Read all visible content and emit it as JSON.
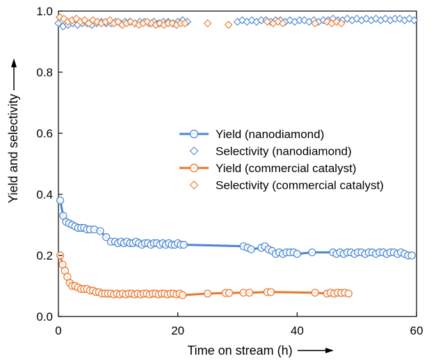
{
  "chart_data": {
    "type": "line",
    "xlabel": "Time on stream (h)",
    "ylabel": "Yield and selectivity",
    "xlim": [
      0,
      60
    ],
    "ylim": [
      0.0,
      1.0
    ],
    "xticks": [
      0,
      20,
      40,
      60
    ],
    "yticks": [
      0.0,
      0.2,
      0.4,
      0.6,
      0.8,
      1.0
    ],
    "xtick_labels": [
      "0",
      "20",
      "40",
      "60"
    ],
    "ytick_labels": [
      "0.0",
      "0.2",
      "0.4",
      "0.6",
      "0.8",
      "1.0"
    ],
    "grid": false,
    "legend_position": "center-right",
    "series": [
      {
        "name": "Yield (nanodiamond)",
        "marker": "circle",
        "line": true,
        "color": "#4a86d0",
        "x": [
          0.3,
          0.8,
          1.3,
          1.8,
          2.3,
          2.8,
          3.3,
          3.8,
          4.3,
          4.8,
          5.3,
          6.0,
          7.0,
          8.0,
          8.8,
          9.5,
          10.0,
          10.5,
          11.0,
          11.5,
          12.0,
          12.5,
          13.0,
          13.5,
          14.0,
          14.5,
          15.0,
          15.5,
          16.0,
          16.5,
          17.0,
          17.5,
          18.0,
          18.5,
          19.0,
          19.5,
          20.0,
          20.5,
          21.0,
          31.0,
          31.7,
          32.3,
          34.0,
          34.6,
          35.2,
          35.8,
          36.4,
          37.0,
          37.6,
          38.2,
          38.8,
          39.4,
          40.0,
          42.5,
          46.0,
          46.6,
          47.2,
          47.8,
          48.4,
          49.0,
          49.6,
          50.2,
          50.8,
          51.4,
          52.0,
          52.6,
          53.2,
          53.8,
          54.4,
          55.0,
          55.6,
          56.2,
          56.8,
          57.4,
          58.0,
          58.6,
          59.2
        ],
        "y": [
          0.38,
          0.33,
          0.31,
          0.305,
          0.3,
          0.295,
          0.29,
          0.29,
          0.29,
          0.285,
          0.285,
          0.285,
          0.28,
          0.26,
          0.245,
          0.245,
          0.24,
          0.245,
          0.24,
          0.245,
          0.24,
          0.24,
          0.245,
          0.24,
          0.235,
          0.24,
          0.24,
          0.235,
          0.24,
          0.24,
          0.235,
          0.24,
          0.235,
          0.24,
          0.235,
          0.235,
          0.24,
          0.235,
          0.235,
          0.23,
          0.225,
          0.22,
          0.225,
          0.23,
          0.22,
          0.215,
          0.205,
          0.21,
          0.205,
          0.21,
          0.21,
          0.21,
          0.205,
          0.21,
          0.21,
          0.205,
          0.21,
          0.205,
          0.21,
          0.21,
          0.205,
          0.21,
          0.21,
          0.205,
          0.21,
          0.21,
          0.205,
          0.21,
          0.21,
          0.205,
          0.21,
          0.21,
          0.205,
          0.21,
          0.205,
          0.2,
          0.2
        ]
      },
      {
        "name": "Selectivity (nanodiamond)",
        "marker": "diamond",
        "line": false,
        "color": "#4a86d0",
        "x": [
          0.0,
          0.8,
          1.6,
          2.4,
          3.2,
          4.0,
          4.8,
          5.6,
          6.4,
          7.2,
          8.0,
          8.8,
          9.6,
          10.4,
          11.2,
          12.0,
          12.8,
          13.6,
          14.4,
          15.2,
          16.0,
          16.8,
          17.6,
          18.4,
          19.2,
          20.0,
          20.8,
          21.6,
          30.0,
          30.8,
          31.6,
          32.4,
          33.2,
          34.0,
          34.8,
          35.6,
          36.4,
          37.2,
          38.0,
          38.8,
          39.6,
          40.4,
          41.2,
          42.0,
          42.8,
          43.6,
          44.4,
          45.2,
          46.0,
          46.8,
          47.6,
          48.4,
          49.2,
          50.0,
          50.8,
          51.6,
          52.4,
          53.2,
          54.0,
          54.8,
          55.6,
          56.4,
          57.2,
          58.0,
          58.8,
          59.6
        ],
        "y": [
          0.96,
          0.95,
          0.955,
          0.96,
          0.955,
          0.96,
          0.96,
          0.955,
          0.96,
          0.965,
          0.96,
          0.96,
          0.965,
          0.96,
          0.965,
          0.965,
          0.96,
          0.965,
          0.965,
          0.96,
          0.965,
          0.96,
          0.965,
          0.965,
          0.96,
          0.965,
          0.97,
          0.965,
          0.965,
          0.97,
          0.965,
          0.97,
          0.965,
          0.97,
          0.97,
          0.965,
          0.97,
          0.97,
          0.965,
          0.97,
          0.965,
          0.97,
          0.97,
          0.965,
          0.97,
          0.965,
          0.97,
          0.97,
          0.975,
          0.97,
          0.97,
          0.975,
          0.97,
          0.975,
          0.97,
          0.975,
          0.97,
          0.975,
          0.97,
          0.975,
          0.97,
          0.975,
          0.975,
          0.97,
          0.975,
          0.97
        ]
      },
      {
        "name": "Yield (commercial catalyst)",
        "marker": "circle",
        "line": true,
        "color": "#e8762c",
        "x": [
          0.3,
          0.7,
          1.1,
          1.5,
          1.9,
          2.3,
          2.8,
          3.3,
          3.8,
          4.3,
          4.8,
          5.3,
          5.8,
          6.3,
          6.8,
          7.3,
          7.8,
          8.3,
          8.8,
          9.3,
          9.8,
          10.3,
          10.8,
          11.3,
          11.8,
          12.3,
          12.8,
          13.3,
          13.8,
          14.3,
          14.8,
          15.3,
          15.8,
          16.3,
          16.8,
          17.3,
          17.8,
          18.3,
          18.8,
          19.3,
          19.8,
          20.3,
          20.8,
          25.0,
          28.0,
          28.6,
          31.0,
          32.0,
          35.0,
          35.6,
          43.0,
          45.0,
          45.6,
          46.2,
          46.8,
          47.4,
          48.0,
          48.6
        ],
        "y": [
          0.2,
          0.17,
          0.15,
          0.13,
          0.11,
          0.1,
          0.1,
          0.095,
          0.09,
          0.09,
          0.09,
          0.085,
          0.085,
          0.08,
          0.08,
          0.075,
          0.075,
          0.075,
          0.075,
          0.072,
          0.075,
          0.072,
          0.075,
          0.072,
          0.075,
          0.075,
          0.072,
          0.075,
          0.072,
          0.075,
          0.075,
          0.072,
          0.075,
          0.075,
          0.072,
          0.075,
          0.075,
          0.072,
          0.075,
          0.075,
          0.072,
          0.075,
          0.07,
          0.075,
          0.077,
          0.077,
          0.078,
          0.078,
          0.08,
          0.08,
          0.078,
          0.075,
          0.078,
          0.075,
          0.078,
          0.077,
          0.078,
          0.075
        ]
      },
      {
        "name": "Selectivity (commercial catalyst)",
        "marker": "diamond",
        "line": false,
        "color": "#e8762c",
        "x": [
          0.2,
          0.9,
          1.6,
          2.3,
          3.0,
          3.7,
          4.4,
          5.1,
          5.8,
          6.5,
          7.2,
          7.9,
          8.6,
          9.3,
          10.0,
          10.7,
          11.4,
          12.1,
          12.8,
          13.5,
          14.2,
          14.9,
          15.6,
          16.3,
          17.0,
          17.7,
          18.4,
          19.1,
          19.8,
          20.5,
          21.2,
          25.0,
          28.5,
          35.0,
          36.0,
          36.8,
          37.6,
          43.0,
          45.0,
          45.8,
          46.6,
          47.4
        ],
        "y": [
          0.98,
          0.975,
          0.965,
          0.97,
          0.975,
          0.965,
          0.97,
          0.96,
          0.97,
          0.965,
          0.96,
          0.965,
          0.97,
          0.96,
          0.965,
          0.955,
          0.96,
          0.965,
          0.96,
          0.955,
          0.96,
          0.965,
          0.96,
          0.955,
          0.96,
          0.955,
          0.96,
          0.96,
          0.955,
          0.96,
          0.96,
          0.96,
          0.955,
          0.965,
          0.96,
          0.965,
          0.96,
          0.96,
          0.965,
          0.96,
          0.965,
          0.96
        ]
      }
    ]
  }
}
